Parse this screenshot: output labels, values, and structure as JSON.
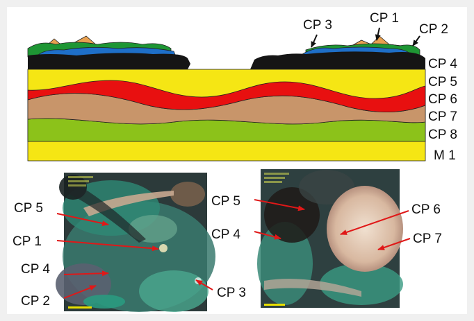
{
  "diagram": {
    "layer_labels": {
      "cp4": "CP 4",
      "cp5": "CP 5",
      "cp6": "CP 6",
      "cp7": "CP 7",
      "cp8": "CP 8",
      "m1": "M 1"
    },
    "surface_labels": {
      "cp1": "CP 1",
      "cp2": "CP 2",
      "cp3": "CP 3"
    },
    "colors": {
      "yellow": "#f5e614",
      "red": "#e81010",
      "tan": "#c8956a",
      "green": "#8cc21a",
      "black": "#151515",
      "blue": "#1e6fc8",
      "dark_green": "#1e9634",
      "orange": "#e8a050",
      "arrow_red": "#e01818"
    }
  },
  "micrograph_left": {
    "labels": {
      "cp5": "CP 5",
      "cp1": "CP 1",
      "cp4": "CP 4",
      "cp2": "CP 2",
      "cp3": "CP 3"
    }
  },
  "micrograph_right": {
    "labels": {
      "cp5": "CP 5",
      "cp4": "CP 4",
      "cp6": "CP 6",
      "cp7": "CP 7"
    }
  }
}
